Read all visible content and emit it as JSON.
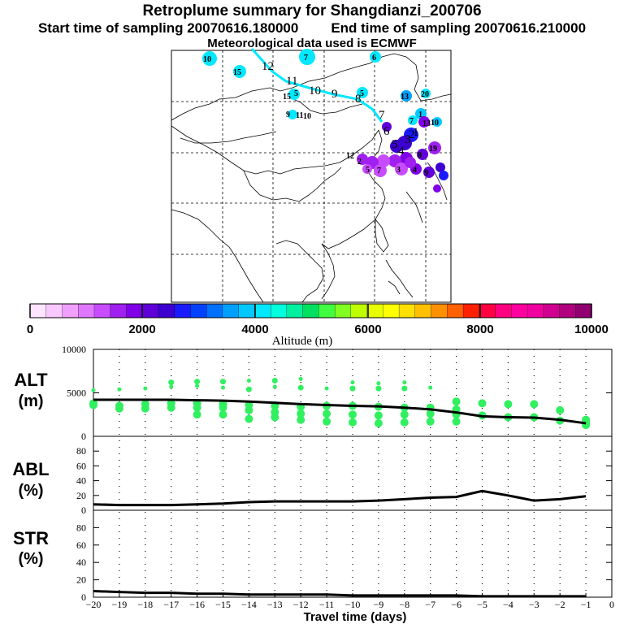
{
  "header": {
    "title": "Retroplume summary for Shangdianzi_200706",
    "start": "Start time of sampling 20070616.180000",
    "end": "End time of sampling 20070616.210000",
    "met": "Meteorological data used is ECMWF"
  },
  "colorbar": {
    "label": "Altitude (m)",
    "ticks": [
      "0",
      "2000",
      "4000",
      "6000",
      "8000",
      "10000"
    ],
    "colors": [
      "#ffe4ff",
      "#f8c8ff",
      "#f0a0ff",
      "#e078ff",
      "#c84cff",
      "#a020f0",
      "#8000e8",
      "#6000d8",
      "#3c00d0",
      "#1a1aff",
      "#0040ff",
      "#0070ff",
      "#00a0ff",
      "#00c8ff",
      "#00e8ff",
      "#00ffdc",
      "#00f0a0",
      "#00e060",
      "#40ff40",
      "#80ff20",
      "#c0ff00",
      "#e8ff00",
      "#ffff00",
      "#ffe000",
      "#ffc000",
      "#ff9000",
      "#ff6000",
      "#ff2000",
      "#ff0040",
      "#ff0080",
      "#ff00a0",
      "#f000a0",
      "#d00090",
      "#b00080",
      "#900070"
    ]
  },
  "map": {
    "track_labels": [
      "12",
      "11",
      "10",
      "9",
      "8",
      "7",
      "6",
      "5",
      "4",
      "3",
      "2",
      "1"
    ],
    "cluster_labels_cyan": [
      "10",
      "15",
      "2",
      "7",
      "6",
      "5",
      "13",
      "20",
      "9",
      "11",
      "10",
      "15",
      "5",
      "7",
      "1"
    ],
    "cluster_labels_purple": [
      "12",
      "5",
      "7",
      "3",
      "4",
      "9",
      "2",
      "10",
      "19",
      "13",
      "8"
    ]
  },
  "chart_data": [
    {
      "type": "line",
      "panel": "ALT",
      "ylabel": "ALT\n(m)",
      "ylabel_lines": [
        "ALT",
        "(m)"
      ],
      "ylim": [
        0,
        10000
      ],
      "yticks": [
        "10000",
        "5000",
        "0"
      ],
      "x": [
        -20,
        -19,
        -18,
        -17,
        -16,
        -15,
        -14,
        -13,
        -12,
        -11,
        -10,
        -9,
        -8,
        -7,
        -6,
        -5,
        -4,
        -3,
        -2,
        -1
      ],
      "series": [
        {
          "name": "mean altitude",
          "values": [
            4200,
            4200,
            4200,
            4200,
            4150,
            4100,
            4000,
            3850,
            3700,
            3600,
            3500,
            3450,
            3300,
            3100,
            2750,
            2300,
            2200,
            2150,
            1900,
            1500
          ]
        }
      ],
      "scatter": [
        {
          "x": -20,
          "y": [
            5300,
            3800,
            3600
          ]
        },
        {
          "x": -19,
          "y": [
            5400,
            3500,
            3200
          ]
        },
        {
          "x": -18,
          "y": [
            5500,
            3700,
            3200
          ]
        },
        {
          "x": -17,
          "y": [
            5700,
            6200,
            3800,
            3300
          ]
        },
        {
          "x": -16,
          "y": [
            5800,
            6300,
            3800,
            3300,
            2500
          ]
        },
        {
          "x": -15,
          "y": [
            5600,
            6300,
            3700,
            3300,
            2500
          ]
        },
        {
          "x": -14,
          "y": [
            6400,
            5400,
            3600,
            3000,
            2000
          ]
        },
        {
          "x": -13,
          "y": [
            5700,
            6400,
            3500,
            2800,
            2200
          ]
        },
        {
          "x": -12,
          "y": [
            6600,
            5600,
            3400,
            2600,
            1900
          ]
        },
        {
          "x": -11,
          "y": [
            5500,
            3500,
            2600,
            1700
          ]
        },
        {
          "x": -10,
          "y": [
            6200,
            5500,
            3500,
            2500,
            1600
          ]
        },
        {
          "x": -9,
          "y": [
            6100,
            5500,
            3400,
            2400,
            1500
          ]
        },
        {
          "x": -8,
          "y": [
            6200,
            5500,
            3300,
            2500,
            1600
          ]
        },
        {
          "x": -7,
          "y": [
            5600,
            3300,
            2600,
            1700
          ]
        },
        {
          "x": -6,
          "y": [
            4000,
            3100,
            2500,
            1700
          ]
        },
        {
          "x": -5,
          "y": [
            3800,
            2400
          ]
        },
        {
          "x": -4,
          "y": [
            3700,
            2200
          ]
        },
        {
          "x": -3,
          "y": [
            3700,
            2200
          ]
        },
        {
          "x": -2,
          "y": [
            3000,
            1800
          ]
        },
        {
          "x": -1,
          "y": [
            1900,
            1600,
            1300
          ]
        }
      ]
    },
    {
      "type": "line",
      "panel": "ABL",
      "ylabel_lines": [
        "ABL",
        "(%)"
      ],
      "ylim": [
        0,
        100
      ],
      "yticks": [
        "80",
        "60",
        "40",
        "20",
        "0"
      ],
      "x": [
        -20,
        -19,
        -18,
        -17,
        -16,
        -15,
        -14,
        -13,
        -12,
        -11,
        -10,
        -9,
        -8,
        -7,
        -6,
        -5,
        -4,
        -3,
        -2,
        -1
      ],
      "series": [
        {
          "name": "ABL fraction",
          "values": [
            8,
            7,
            7,
            7,
            8,
            9,
            11,
            12,
            12,
            12,
            12,
            13,
            15,
            17,
            18,
            26,
            20,
            13,
            15,
            19
          ]
        }
      ]
    },
    {
      "type": "line",
      "panel": "STR",
      "ylabel_lines": [
        "STR",
        "(%)"
      ],
      "ylim": [
        0,
        100
      ],
      "yticks": [
        "80",
        "60",
        "40",
        "20",
        "0"
      ],
      "x": [
        -20,
        -19,
        -18,
        -17,
        -16,
        -15,
        -14,
        -13,
        -12,
        -11,
        -10,
        -9,
        -8,
        -7,
        -6,
        -5,
        -4,
        -3,
        -2,
        -1
      ],
      "series": [
        {
          "name": "stratospheric fraction",
          "values": [
            7,
            6,
            5,
            5,
            4,
            4,
            3,
            3,
            3,
            3,
            2,
            2,
            2,
            2,
            2,
            1,
            1,
            1,
            1,
            1
          ]
        }
      ],
      "xticks": [
        "−20",
        "−19",
        "−18",
        "−17",
        "−16",
        "−15",
        "−14",
        "−13",
        "−12",
        "−11",
        "−10",
        "−9",
        "−8",
        "−7",
        "−6",
        "−5",
        "−4",
        "−3",
        "−2",
        "−1",
        "0"
      ],
      "xlabel": "Travel time (days)"
    }
  ]
}
